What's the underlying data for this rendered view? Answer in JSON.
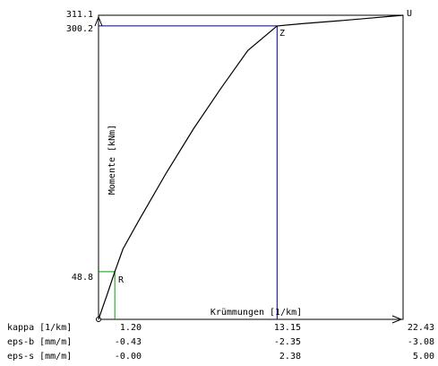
{
  "chart_data": {
    "type": "line",
    "xlabel": "Krümmungen [1/km]",
    "ylabel": "Momente [kNm]",
    "xlim": [
      0,
      22.43
    ],
    "ylim": [
      0,
      311.1
    ],
    "grid": false,
    "y_ticks": [
      "48.8",
      "300.2",
      "311.1"
    ],
    "series": [
      {
        "x": [
          0,
          0.3,
          0.7,
          1.2,
          1.8,
          3.0,
          5.0,
          7.0,
          9.0,
          11.0,
          13.15,
          15.0,
          18.0,
          20.0,
          22.43
        ],
        "y": [
          0,
          12.0,
          28.0,
          48.8,
          72.0,
          102.0,
          150.0,
          195.0,
          236.0,
          275.0,
          300.2,
          302.5,
          305.8,
          308.2,
          311.1
        ]
      }
    ],
    "points": [
      {
        "label": "R",
        "x": 1.2,
        "y": 48.8
      },
      {
        "label": "Z",
        "x": 13.15,
        "y": 300.2
      },
      {
        "label": "U",
        "x": 22.43,
        "y": 311.1
      }
    ],
    "table": {
      "rows": [
        {
          "label": "kappa [1/km]",
          "values": [
            "1.20",
            "13.15",
            "22.43"
          ]
        },
        {
          "label": "eps-b [mm/m]",
          "values": [
            "-0.43",
            "-2.35",
            "-3.08"
          ]
        },
        {
          "label": "eps-s [mm/m]",
          "values": [
            "-0.00",
            "2.38",
            "5.00"
          ]
        }
      ]
    },
    "colors": {
      "curve": "#000000",
      "point_r": "#00a000",
      "point_z": "#000080",
      "frame": "#000000"
    }
  }
}
